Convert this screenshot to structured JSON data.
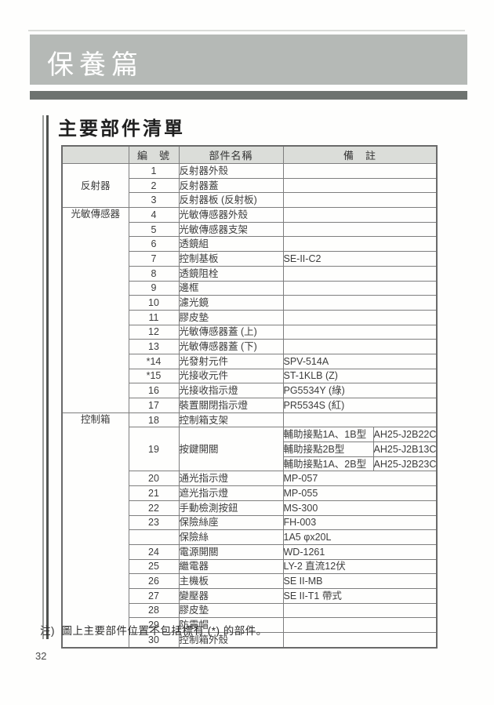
{
  "banner": {
    "title": "保養篇"
  },
  "section": {
    "title": "主要部件清單"
  },
  "note": "注)  圖上主要部件位置不包括標有 (*) 的部件。",
  "page_number": "32",
  "colors": {
    "banner_bg": "#b5b9b6",
    "dark_bar": "#6e7370",
    "table_header_bg": "#dbddd9",
    "table_border": "#7e7e7e"
  },
  "table": {
    "header": {
      "group": "",
      "number": "編　號",
      "part_name": "部件名稱",
      "remark": "備　註"
    },
    "groups": [
      {
        "label": "反射器"
      },
      {
        "label": "光敏傳感器"
      },
      {
        "label": "控制箱"
      }
    ],
    "rows": [
      {
        "num": "1",
        "name": "反射器外殼",
        "remark": ""
      },
      {
        "num": "2",
        "name": "反射器蓋",
        "remark": ""
      },
      {
        "num": "3",
        "name": "反射器板 (反射板)",
        "remark": ""
      },
      {
        "num": "4",
        "name": "光敏傳感器外殼",
        "remark": ""
      },
      {
        "num": "5",
        "name": "光敏傳感器支架",
        "remark": ""
      },
      {
        "num": "6",
        "name": "透鏡組",
        "remark": ""
      },
      {
        "num": "7",
        "name": "控制基板",
        "remark": "SE-II-C2"
      },
      {
        "num": "8",
        "name": "透鏡阻栓",
        "remark": ""
      },
      {
        "num": "9",
        "name": "邊框",
        "remark": ""
      },
      {
        "num": "10",
        "name": "濾光鏡",
        "remark": ""
      },
      {
        "num": "11",
        "name": "膠皮墊",
        "remark": ""
      },
      {
        "num": "12",
        "name": "光敏傳感器蓋 (上)",
        "remark": ""
      },
      {
        "num": "13",
        "name": "光敏傳感器蓋 (下)",
        "remark": ""
      },
      {
        "num": "*14",
        "name": "光發射元件",
        "remark": "SPV-514A"
      },
      {
        "num": "*15",
        "name": "光接收元件",
        "remark": "ST-1KLB (Z)"
      },
      {
        "num": "16",
        "name": "光接收指示燈",
        "remark": "PG5534Y (綠)"
      },
      {
        "num": "17",
        "name": "裝置關閉指示燈",
        "remark": "PR5534S (紅)"
      },
      {
        "num": "18",
        "name": "控制箱支架",
        "remark": ""
      },
      {
        "num": "19",
        "name": "按鍵開關",
        "sub": [
          {
            "type": "輔助接點1A、1B型",
            "model": "AH25-J2B22C"
          },
          {
            "type": "輔助接點2B型",
            "model": "AH25-J2B13C"
          },
          {
            "type": "輔助接點1A、2B型",
            "model": "AH25-J2B23C"
          }
        ]
      },
      {
        "num": "20",
        "name": "通光指示燈",
        "remark": "MP-057"
      },
      {
        "num": "21",
        "name": "遮光指示燈",
        "remark": "MP-055"
      },
      {
        "num": "22",
        "name": "手動檢測按鈕",
        "remark": "MS-300"
      },
      {
        "num": "23",
        "name": "保險絲座",
        "remark": "FH-003"
      },
      {
        "num": "",
        "name": "保險絲",
        "remark": "1A5 φx20L"
      },
      {
        "num": "24",
        "name": "電源開關",
        "remark": "WD-1261"
      },
      {
        "num": "25",
        "name": "繼電器",
        "remark": "LY-2 直流12伏"
      },
      {
        "num": "26",
        "name": "主機板",
        "remark": "SE II-MB"
      },
      {
        "num": "27",
        "name": "變壓器",
        "remark": "SE II-T1 帶式"
      },
      {
        "num": "28",
        "name": "膠皮墊",
        "remark": ""
      },
      {
        "num": "29",
        "name": "防震帽",
        "remark": ""
      },
      {
        "num": "30",
        "name": "控制箱外殼",
        "remark": ""
      }
    ]
  }
}
